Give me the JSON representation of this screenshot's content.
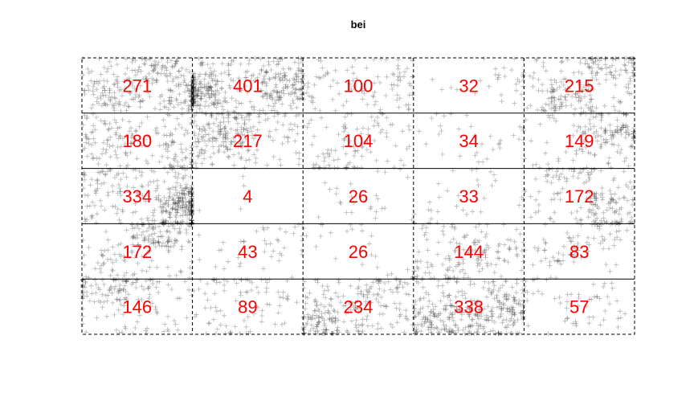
{
  "chart_data": {
    "type": "quadrat-count",
    "title": "bei",
    "nx": 5,
    "ny": 5,
    "counts": [
      [
        271,
        401,
        100,
        32,
        215
      ],
      [
        180,
        217,
        104,
        34,
        149
      ],
      [
        334,
        4,
        26,
        33,
        172
      ],
      [
        172,
        43,
        26,
        144,
        83
      ],
      [
        146,
        89,
        234,
        338,
        57
      ]
    ],
    "point_marker": "plus",
    "point_color": "#000000",
    "count_color": "#ff0000",
    "grid_color": "#000000",
    "vertical_lines": "dashed",
    "horizontal_lines": "solid"
  }
}
